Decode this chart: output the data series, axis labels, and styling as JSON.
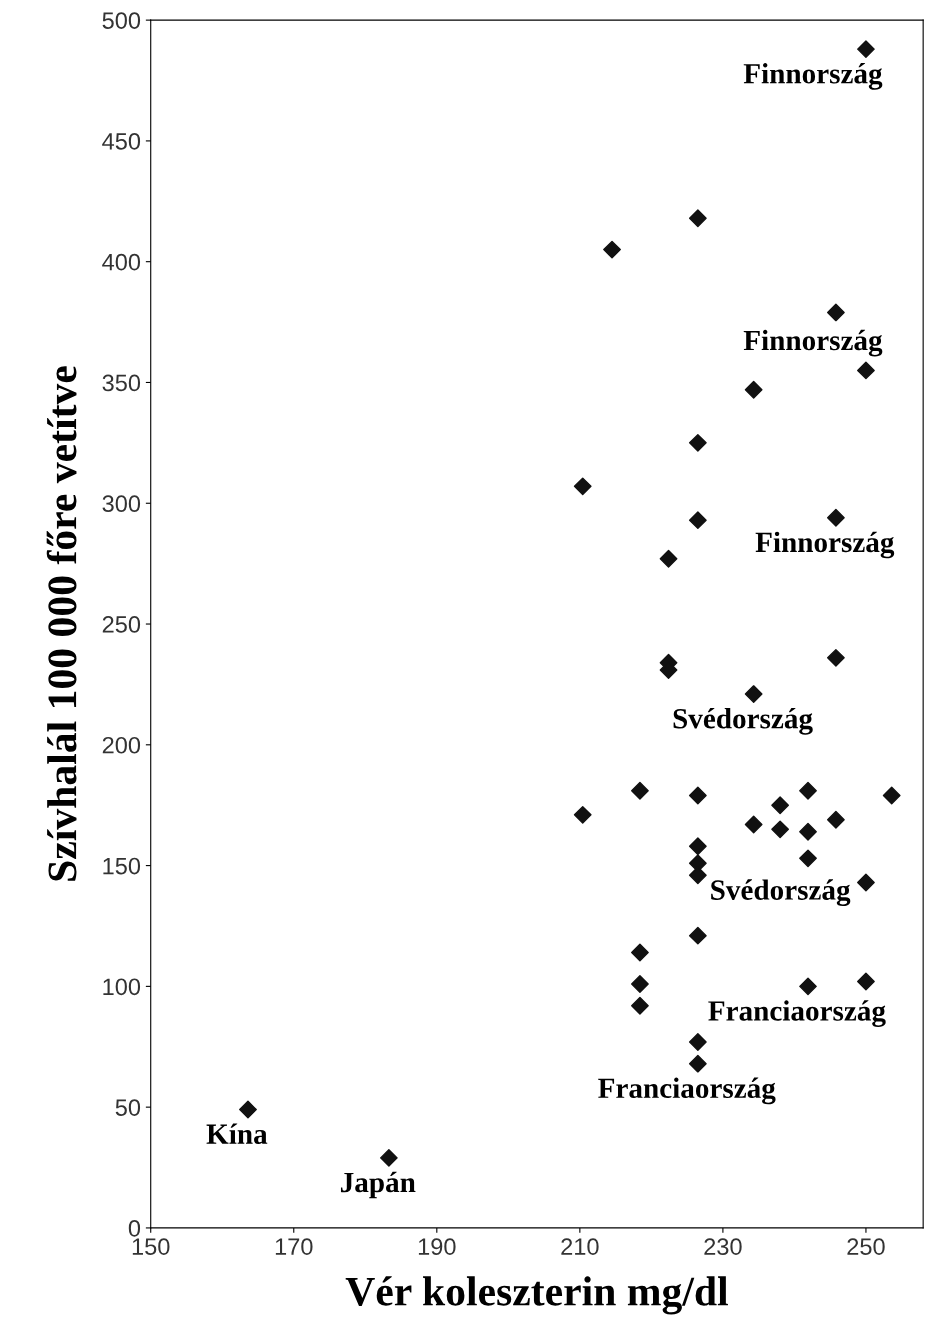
{
  "chart_data": {
    "type": "scatter",
    "xlabel": "Vér koleszterin mg/dl",
    "ylabel": "Szívhalál 100 000 főre vetítve",
    "x": [
      250,
      226.5,
      214.5,
      245.8,
      250,
      234.3,
      226.5,
      210.4,
      226.5,
      245.8,
      222.4,
      222.4,
      222.4,
      245.8,
      234.3,
      210.4,
      218.4,
      226.5,
      234.3,
      238,
      238,
      241.9,
      241.9,
      241.9,
      245.8,
      253.6,
      250,
      226.5,
      226.5,
      226.5,
      226.5,
      218.4,
      218.4,
      218.4,
      241.9,
      250,
      226.5,
      226.5,
      163.6,
      183.3
    ],
    "series": [
      {
        "color": "#111111",
        "values": [
          488,
          418,
          405,
          379,
          355,
          347,
          325,
          307,
          293,
          294,
          277,
          234,
          231,
          236,
          221,
          171,
          181,
          179,
          167,
          175,
          165,
          181,
          164,
          153,
          169,
          179,
          143,
          158,
          151,
          146,
          121,
          114,
          101,
          92,
          100,
          102,
          77,
          68,
          49,
          29
        ]
      }
    ],
    "marker": "diamond",
    "grid": false,
    "xlim": [
      150,
      258
    ],
    "ylim": [
      0,
      500
    ],
    "xticks": [
      150,
      170,
      190,
      210,
      230,
      250
    ],
    "yticks": [
      0,
      50,
      100,
      150,
      200,
      250,
      300,
      350,
      400,
      450,
      500
    ],
    "annotations": [
      {
        "text": "Finnország",
        "x": 250,
        "y": 488
      },
      {
        "text": "Finnország",
        "x": 250,
        "y": 355
      },
      {
        "text": "Finnország",
        "x": 245.8,
        "y": 294
      },
      {
        "text": "Svédország",
        "x": 234.3,
        "y": 221
      },
      {
        "text": "Svédország",
        "x": 238,
        "y": 165
      },
      {
        "text": "Franciaország",
        "x": 241.9,
        "y": 100
      },
      {
        "text": "Franciaország",
        "x": 226.5,
        "y": 68
      },
      {
        "text": "Kína",
        "x": 163.6,
        "y": 49
      },
      {
        "text": "Japán",
        "x": 183.3,
        "y": 29
      }
    ]
  }
}
